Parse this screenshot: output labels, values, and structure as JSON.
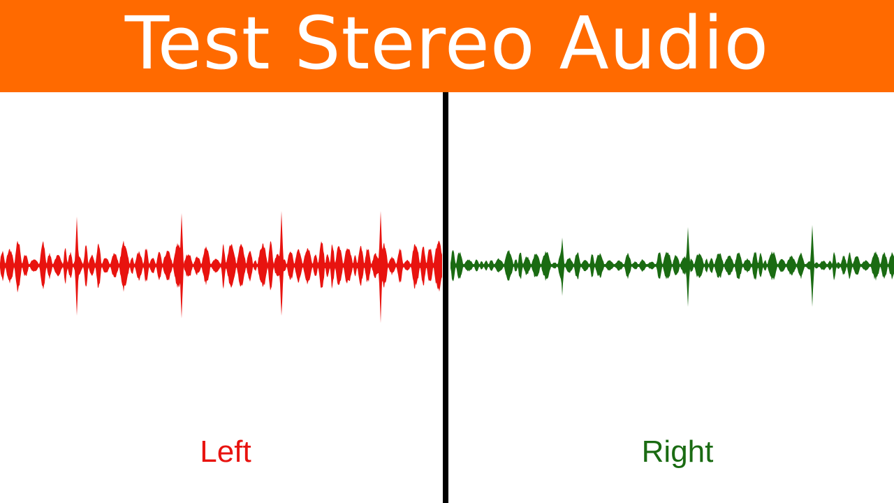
{
  "title": "Test Stereo Audio",
  "channels": [
    {
      "label": "Left",
      "color": "#E8130F"
    },
    {
      "label": "Right",
      "color": "#1A6B12"
    }
  ],
  "header_color": "#FF6A00",
  "divider_color": "#000000"
}
